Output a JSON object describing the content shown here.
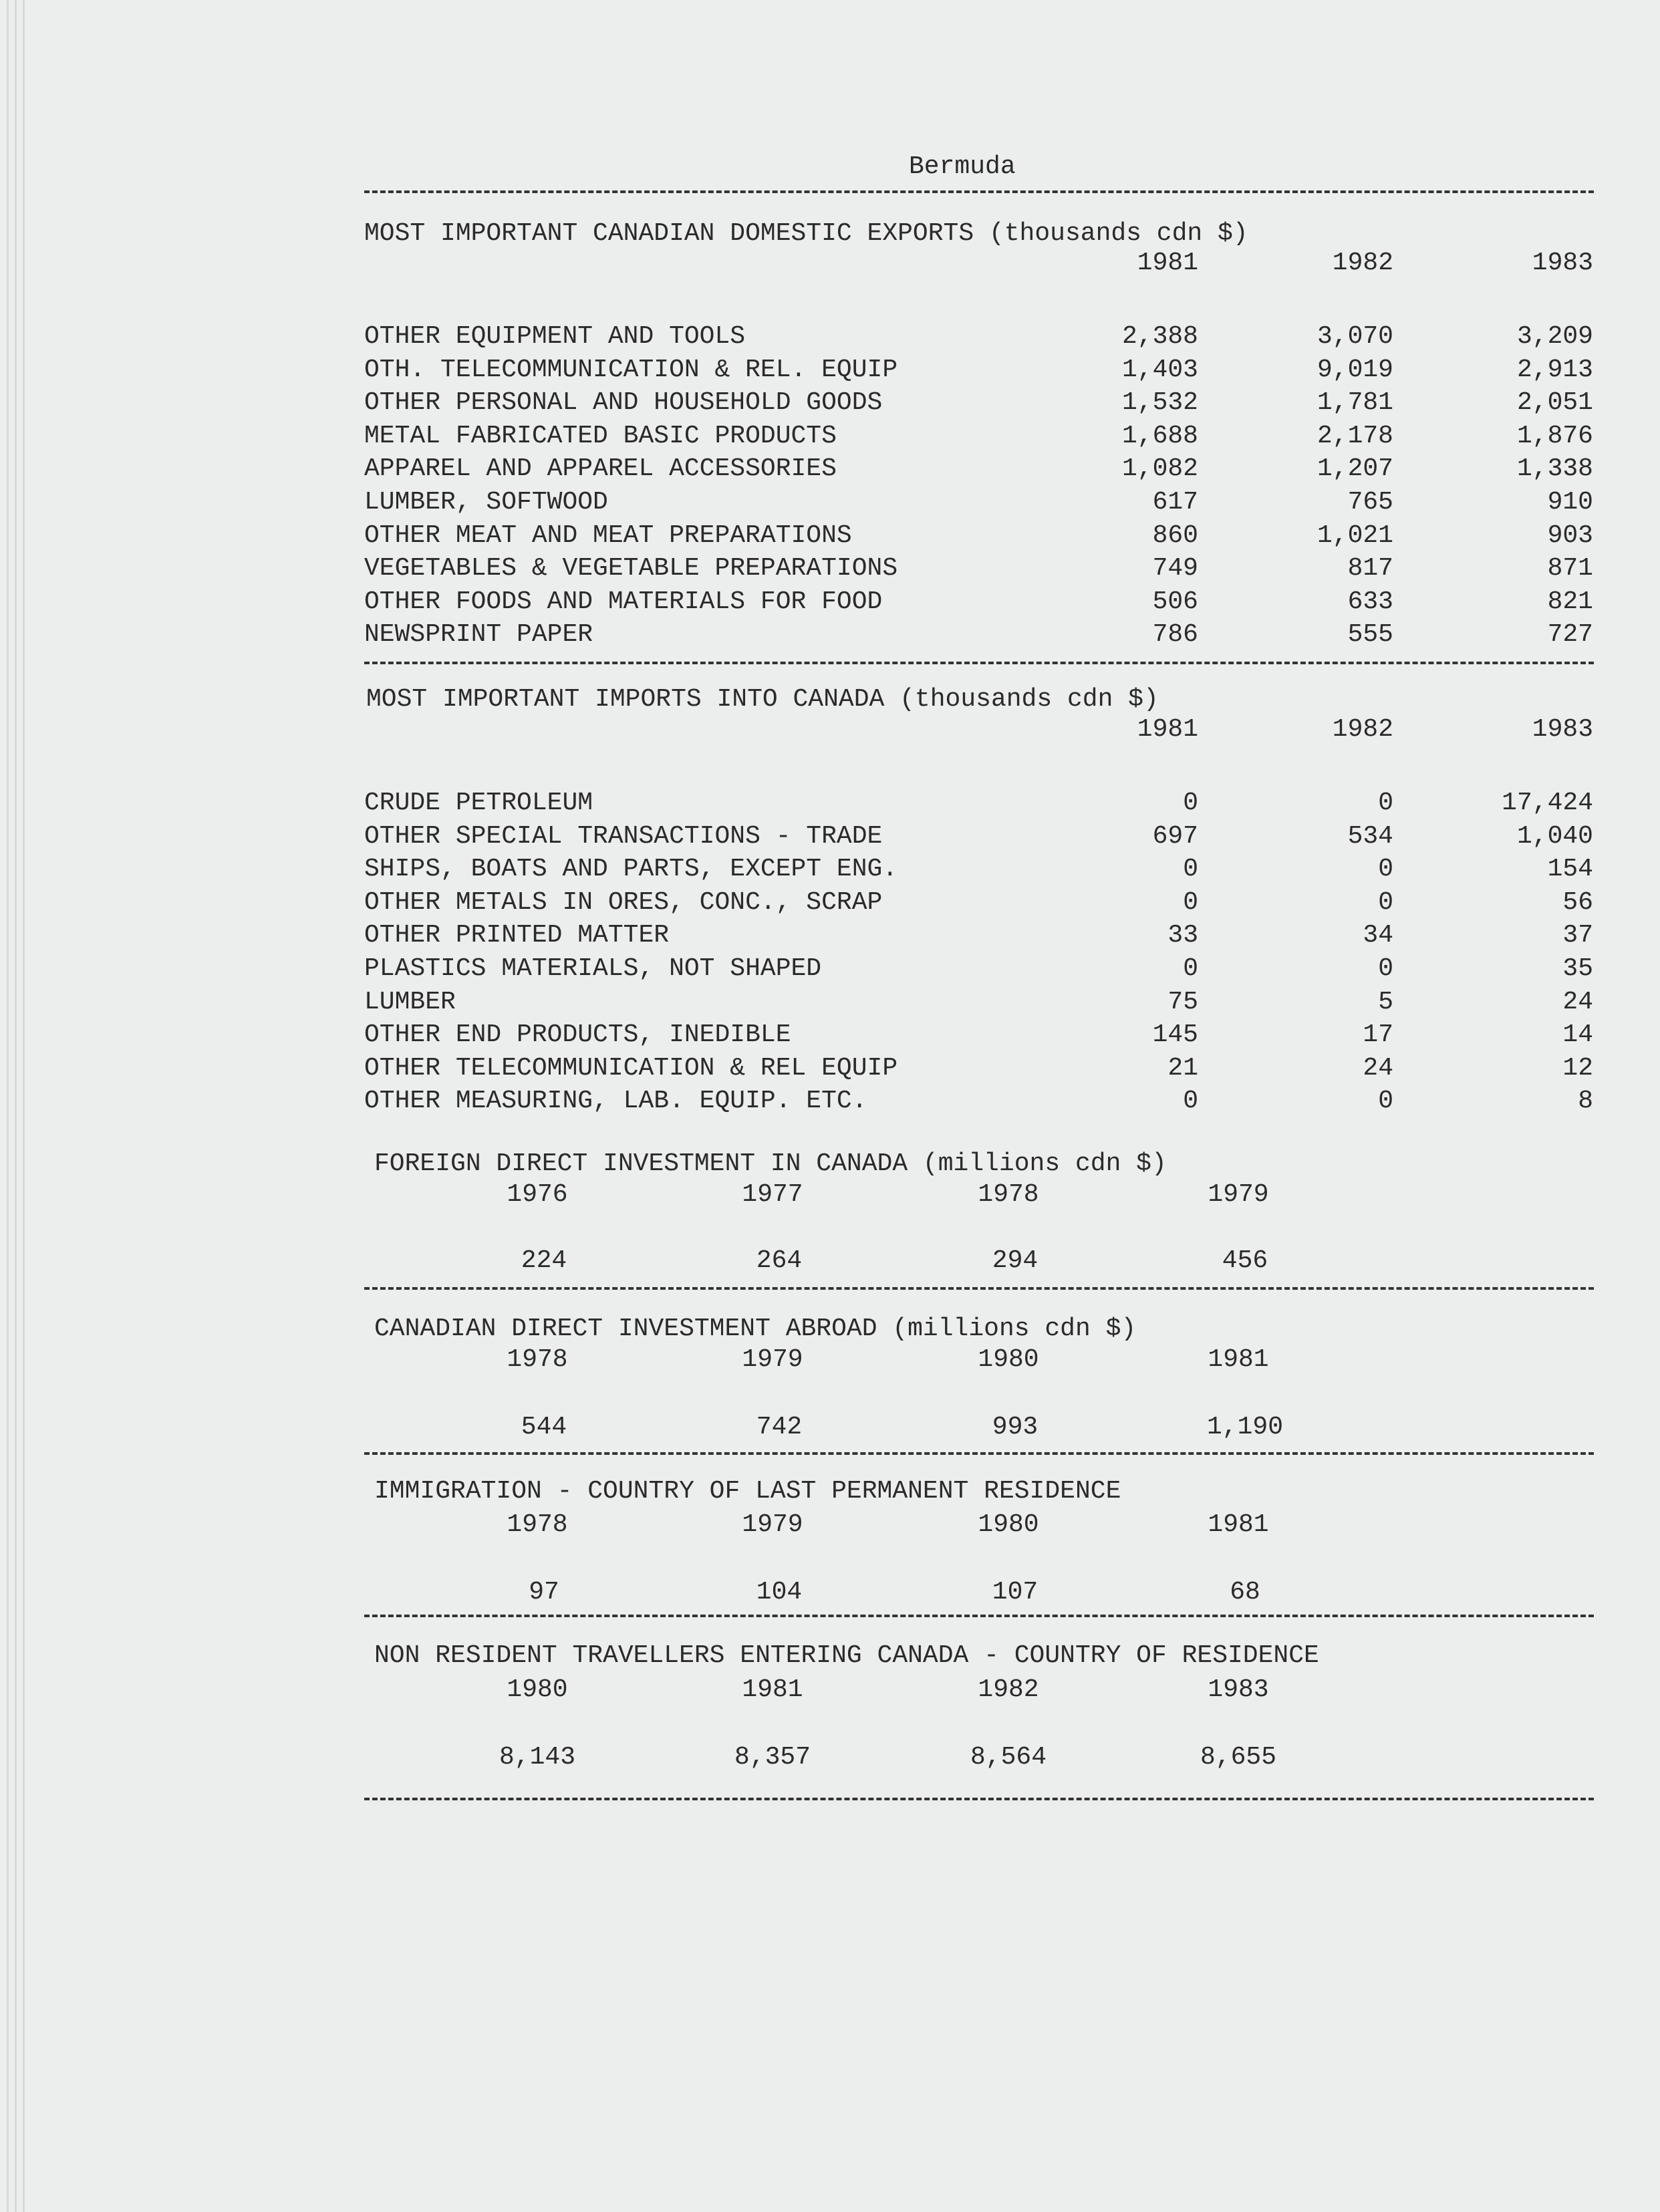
{
  "page_title": "Bermuda",
  "exports": {
    "title": "MOST IMPORTANT CANADIAN DOMESTIC EXPORTS (thousands cdn $)",
    "years": [
      "1981",
      "1982",
      "1983"
    ],
    "rows": [
      {
        "label": "OTHER EQUIPMENT AND TOOLS",
        "values": [
          "2,388",
          "3,070",
          "3,209"
        ]
      },
      {
        "label": "OTH. TELECOMMUNICATION & REL. EQUIP",
        "values": [
          "1,403",
          "9,019",
          "2,913"
        ]
      },
      {
        "label": "OTHER PERSONAL AND HOUSEHOLD GOODS",
        "values": [
          "1,532",
          "1,781",
          "2,051"
        ]
      },
      {
        "label": "METAL FABRICATED BASIC PRODUCTS",
        "values": [
          "1,688",
          "2,178",
          "1,876"
        ]
      },
      {
        "label": "APPAREL AND APPAREL ACCESSORIES",
        "values": [
          "1,082",
          "1,207",
          "1,338"
        ]
      },
      {
        "label": "LUMBER, SOFTWOOD",
        "values": [
          "617",
          "765",
          "910"
        ]
      },
      {
        "label": "OTHER MEAT AND MEAT PREPARATIONS",
        "values": [
          "860",
          "1,021",
          "903"
        ]
      },
      {
        "label": "VEGETABLES & VEGETABLE PREPARATIONS",
        "values": [
          "749",
          "817",
          "871"
        ]
      },
      {
        "label": "OTHER FOODS AND MATERIALS FOR FOOD",
        "values": [
          "506",
          "633",
          "821"
        ]
      },
      {
        "label": "NEWSPRINT PAPER",
        "values": [
          "786",
          "555",
          "727"
        ]
      }
    ]
  },
  "imports": {
    "title": "MOST IMPORTANT IMPORTS INTO CANADA (thousands cdn $)",
    "years": [
      "1981",
      "1982",
      "1983"
    ],
    "rows": [
      {
        "label": "CRUDE PETROLEUM",
        "values": [
          "0",
          "0",
          "17,424"
        ]
      },
      {
        "label": "OTHER SPECIAL TRANSACTIONS - TRADE",
        "values": [
          "697",
          "534",
          "1,040"
        ]
      },
      {
        "label": "SHIPS, BOATS AND PARTS, EXCEPT ENG.",
        "values": [
          "0",
          "0",
          "154"
        ]
      },
      {
        "label": "OTHER METALS IN ORES, CONC., SCRAP",
        "values": [
          "0",
          "0",
          "56"
        ]
      },
      {
        "label": "OTHER PRINTED MATTER",
        "values": [
          "33",
          "34",
          "37"
        ]
      },
      {
        "label": "PLASTICS MATERIALS, NOT SHAPED",
        "values": [
          "0",
          "0",
          "35"
        ]
      },
      {
        "label": "LUMBER",
        "values": [
          "75",
          "5",
          "24"
        ]
      },
      {
        "label": "OTHER END PRODUCTS, INEDIBLE",
        "values": [
          "145",
          "17",
          "14"
        ]
      },
      {
        "label": "OTHER TELECOMMUNICATION & REL EQUIP",
        "values": [
          "21",
          "24",
          "12"
        ]
      },
      {
        "label": "OTHER MEASURING, LAB. EQUIP. ETC.",
        "values": [
          "0",
          "0",
          "8"
        ]
      }
    ]
  },
  "small_sections": [
    {
      "title": "FOREIGN DIRECT INVESTMENT IN CANADA (millions cdn $)",
      "years": [
        "1976",
        "1977",
        "1978",
        "1979"
      ],
      "values": [
        "224",
        "264",
        "294",
        "456"
      ]
    },
    {
      "title": "CANADIAN DIRECT INVESTMENT ABROAD (millions cdn $)",
      "years": [
        "1978",
        "1979",
        "1980",
        "1981"
      ],
      "values": [
        "544",
        "742",
        "993",
        "1,190"
      ]
    },
    {
      "title": "IMMIGRATION - COUNTRY OF LAST PERMANENT RESIDENCE",
      "years": [
        "1978",
        "1979",
        "1980",
        "1981"
      ],
      "values": [
        "97",
        "104",
        "107",
        "68"
      ]
    },
    {
      "title": "NON RESIDENT TRAVELLERS ENTERING CANADA - COUNTRY OF RESIDENCE",
      "years": [
        "1980",
        "1981",
        "1982",
        "1983"
      ],
      "values": [
        "8,143",
        "8,357",
        "8,564",
        "8,655"
      ]
    }
  ]
}
